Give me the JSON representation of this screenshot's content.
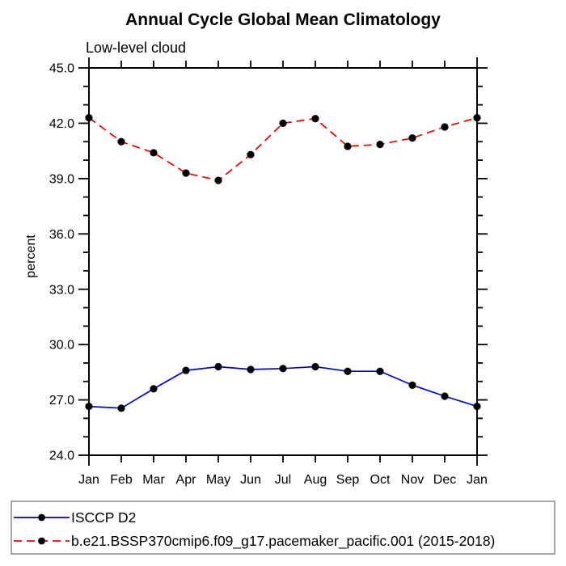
{
  "chart_data": {
    "type": "line",
    "title": "Annual Cycle Global Mean Climatology",
    "subtitle": "Low-level cloud",
    "ylabel": "percent",
    "categories": [
      "Jan",
      "Feb",
      "Mar",
      "Apr",
      "May",
      "Jun",
      "Jul",
      "Aug",
      "Sep",
      "Oct",
      "Nov",
      "Dec",
      "Jan"
    ],
    "ylim": [
      24.0,
      45.0
    ],
    "ytick_major_interval": 3.0,
    "ytick_minor_interval": 1.0,
    "ytick_labels": [
      "24.0",
      "27.0",
      "30.0",
      "33.0",
      "36.0",
      "39.0",
      "42.0",
      "45.0"
    ],
    "grid": false,
    "legend_position": "bottom",
    "axis_color": "#000000",
    "legend_border_color": "#888888",
    "marker_color": "#000000",
    "series": [
      {
        "name": "ISCCP D2",
        "color": "#0000dd",
        "line_style": "solid",
        "marker": "filled-circle",
        "values": [
          26.65,
          26.55,
          27.6,
          28.6,
          28.8,
          28.65,
          28.7,
          28.8,
          28.55,
          28.55,
          27.8,
          27.2,
          26.65
        ]
      },
      {
        "name": "b.e21.BSSP370cmip6.f09_g17.pacemaker_pacific.001 (2015-2018)",
        "color": "#ee0000",
        "line_style": "dashed",
        "marker": "filled-circle",
        "values": [
          42.3,
          41.0,
          40.4,
          39.3,
          38.9,
          40.3,
          42.0,
          42.25,
          40.75,
          40.85,
          41.2,
          41.8,
          42.3
        ]
      }
    ]
  }
}
